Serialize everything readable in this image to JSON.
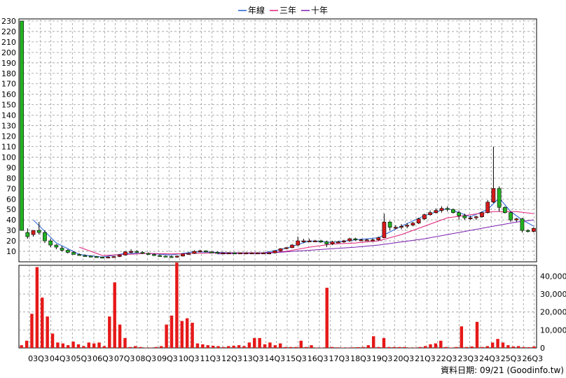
{
  "legend": [
    {
      "label": "年線",
      "color": "#1f5fd6"
    },
    {
      "label": "三年",
      "color": "#e0207a"
    },
    {
      "label": "十年",
      "color": "#7a1fb0"
    }
  ],
  "footer": "資料日期: 09/21 (Goodinfo.tw)",
  "chart_data": {
    "type": "candlestick-with-volume",
    "legend_placement": "top-center",
    "grid": true,
    "x_tick_labels": [
      "03Q3",
      "04Q3",
      "05Q3",
      "06Q3",
      "07Q3",
      "08Q3",
      "09Q3",
      "10Q3",
      "11Q3",
      "12Q3",
      "13Q3",
      "14Q3",
      "15Q3",
      "16Q3",
      "17Q3",
      "18Q3",
      "19Q3",
      "20Q3",
      "21Q3",
      "22Q3",
      "23Q3",
      "24Q3",
      "25Q3",
      "26Q3"
    ],
    "price_axis": {
      "ticks": [
        10,
        20,
        30,
        40,
        50,
        60,
        70,
        80,
        90,
        100,
        110,
        120,
        130,
        140,
        150,
        160,
        170,
        180,
        190,
        200,
        210,
        220,
        230
      ],
      "range": [
        0,
        232
      ]
    },
    "volume_axis": {
      "ticks": [
        0,
        10000,
        20000,
        30000,
        40000
      ],
      "tick_labels": [
        "0",
        "10,000",
        "20,000",
        "30,000",
        "40,000"
      ],
      "range": [
        0,
        46000
      ]
    },
    "candles": {
      "fields": [
        "quarter_index",
        "open",
        "high",
        "low",
        "close"
      ],
      "rows": [
        [
          0,
          230,
          230,
          30,
          30
        ],
        [
          1,
          28,
          32,
          22,
          24
        ],
        [
          2,
          26,
          30,
          24,
          30
        ],
        [
          3,
          30,
          38,
          26,
          28
        ],
        [
          4,
          28,
          30,
          18,
          20
        ],
        [
          5,
          20,
          22,
          14,
          16
        ],
        [
          6,
          16,
          17,
          12,
          14
        ],
        [
          7,
          13,
          15,
          10,
          11
        ],
        [
          8,
          11,
          12,
          8,
          9
        ],
        [
          9,
          9,
          10,
          7,
          7
        ],
        [
          10,
          7,
          8,
          6,
          6
        ],
        [
          11,
          6,
          7,
          5,
          5.5
        ],
        [
          12,
          5.5,
          6,
          4.5,
          5
        ],
        [
          13,
          5,
          5.5,
          4,
          4.5
        ],
        [
          14,
          4.5,
          5,
          4,
          4.2
        ],
        [
          15,
          4.2,
          5,
          3.8,
          4.6
        ],
        [
          16,
          4.6,
          5.5,
          4,
          5
        ],
        [
          17,
          5,
          7,
          4.5,
          6.5
        ],
        [
          18,
          6.5,
          10,
          6,
          9.5
        ],
        [
          19,
          9.5,
          12,
          8,
          10
        ],
        [
          20,
          10,
          11,
          8.5,
          9
        ],
        [
          21,
          9,
          10,
          7.5,
          8
        ],
        [
          22,
          8,
          9,
          6.5,
          7
        ],
        [
          23,
          7,
          8,
          5.5,
          6
        ],
        [
          24,
          6,
          7,
          5,
          5.5
        ],
        [
          25,
          5.5,
          6,
          4.5,
          5
        ],
        [
          26,
          5,
          6,
          4,
          4.5
        ],
        [
          27,
          4.5,
          6,
          3.8,
          5.5
        ],
        [
          28,
          5.5,
          8,
          5,
          7.5
        ],
        [
          29,
          7.5,
          9,
          7,
          8
        ],
        [
          30,
          8,
          11,
          7.5,
          10
        ],
        [
          31,
          10,
          11.5,
          9,
          10.5
        ],
        [
          32,
          10.5,
          11,
          9,
          9.5
        ],
        [
          33,
          9.5,
          10,
          8.5,
          9
        ],
        [
          34,
          9,
          10,
          8,
          8.5
        ],
        [
          35,
          8.5,
          9,
          8,
          8.5
        ],
        [
          36,
          8.5,
          9,
          8,
          8.5
        ],
        [
          37,
          8.5,
          9,
          7.5,
          8
        ],
        [
          38,
          8,
          9,
          7.5,
          8.5
        ],
        [
          39,
          8.5,
          9,
          8,
          8.5
        ],
        [
          40,
          8.5,
          9,
          8,
          8.5
        ],
        [
          41,
          8.5,
          9,
          8,
          8.5
        ],
        [
          42,
          8.5,
          9,
          8,
          8.5
        ],
        [
          43,
          8.5,
          9,
          8,
          8.5
        ],
        [
          44,
          8.5,
          11,
          8,
          10.5
        ],
        [
          45,
          10.5,
          13,
          10,
          12.5
        ],
        [
          46,
          12.5,
          14,
          12,
          13.5
        ],
        [
          47,
          13.5,
          17,
          13,
          16
        ],
        [
          48,
          16,
          24,
          15,
          20
        ],
        [
          49,
          20,
          22,
          18,
          20
        ],
        [
          50,
          20,
          22,
          19,
          20
        ],
        [
          51,
          20,
          21,
          19,
          20
        ],
        [
          52,
          20,
          21,
          18,
          19
        ],
        [
          53,
          19,
          20,
          14,
          17
        ],
        [
          54,
          17,
          20,
          16,
          19
        ],
        [
          55,
          19,
          20,
          18,
          19
        ],
        [
          56,
          19,
          21,
          18,
          20
        ],
        [
          57,
          20,
          23,
          19,
          22
        ],
        [
          58,
          22,
          23,
          20,
          21
        ],
        [
          59,
          21,
          22,
          20,
          21
        ],
        [
          60,
          21,
          22,
          20,
          21
        ],
        [
          61,
          21,
          22,
          20,
          21
        ],
        [
          62,
          21,
          24,
          20,
          23
        ],
        [
          63,
          23,
          46,
          23,
          38
        ],
        [
          64,
          38,
          39,
          30,
          33
        ],
        [
          65,
          33,
          35,
          31,
          33
        ],
        [
          66,
          33,
          36,
          31,
          34
        ],
        [
          67,
          34,
          37,
          32,
          35
        ],
        [
          68,
          35,
          38,
          34,
          37
        ],
        [
          69,
          37,
          42,
          36,
          41
        ],
        [
          70,
          41,
          46,
          40,
          45
        ],
        [
          71,
          45,
          49,
          44,
          47
        ],
        [
          72,
          47,
          51,
          46,
          49
        ],
        [
          73,
          49,
          53,
          47,
          51
        ],
        [
          74,
          51,
          53,
          48,
          50
        ],
        [
          75,
          50,
          51,
          46,
          47
        ],
        [
          76,
          47,
          49,
          40,
          44
        ],
        [
          77,
          44,
          46,
          40,
          42
        ],
        [
          78,
          42,
          44,
          40,
          42
        ],
        [
          79,
          42,
          44,
          40,
          43
        ],
        [
          80,
          43,
          48,
          42,
          47
        ],
        [
          81,
          47,
          59,
          46,
          57
        ],
        [
          82,
          57,
          110,
          56,
          70
        ],
        [
          83,
          70,
          72,
          48,
          52
        ],
        [
          84,
          52,
          53,
          46,
          47
        ],
        [
          85,
          47,
          48,
          38,
          40
        ],
        [
          86,
          40,
          42,
          38,
          41
        ],
        [
          87,
          41,
          42,
          28,
          30
        ],
        [
          88,
          30,
          31,
          28,
          29
        ],
        [
          89,
          29,
          33,
          28,
          32
        ]
      ]
    },
    "series": [
      {
        "name": "年線",
        "x": [
          2,
          6,
          10,
          14,
          18,
          22,
          26,
          30,
          34,
          38,
          42,
          46,
          50,
          54,
          58,
          62,
          66,
          70,
          74,
          78,
          81,
          83,
          85,
          87,
          89
        ],
        "y": [
          40,
          18,
          7,
          4.5,
          8,
          8,
          6.5,
          9.5,
          9,
          8.5,
          8.5,
          13,
          20,
          18.5,
          21,
          23,
          34,
          44,
          51,
          43,
          50,
          61,
          48,
          40,
          34
        ]
      },
      {
        "name": "三年",
        "x": [
          10,
          14,
          18,
          22,
          26,
          30,
          34,
          38,
          42,
          46,
          50,
          54,
          58,
          62,
          66,
          70,
          74,
          78,
          82,
          86,
          89
        ],
        "y": [
          14,
          6,
          7,
          8,
          7.5,
          8,
          8.5,
          8.5,
          8.5,
          10,
          14,
          17,
          18,
          20,
          26,
          34,
          42,
          45,
          48,
          48,
          46
        ]
      },
      {
        "name": "十年",
        "x": [
          34,
          38,
          42,
          46,
          50,
          54,
          58,
          62,
          66,
          70,
          74,
          78,
          82,
          86,
          89
        ],
        "y": [
          7.5,
          8,
          8,
          9.5,
          11,
          12.5,
          14,
          16,
          19,
          22,
          26,
          30,
          34,
          38,
          40
        ]
      }
    ],
    "volume": [
      1500,
      4000,
      19000,
      45000,
      28000,
      17500,
      8000,
      3000,
      2500,
      1500,
      3500,
      2000,
      1000,
      3000,
      2500,
      3000,
      1000,
      17500,
      36500,
      13000,
      5500,
      500,
      1000,
      500,
      200,
      200,
      500,
      1000,
      13000,
      18000,
      47500,
      15000,
      16500,
      14000,
      2500,
      2000,
      1500,
      1200,
      1000,
      500,
      1000,
      1200,
      1500,
      1000,
      3000,
      5500,
      5500,
      2000,
      3000,
      1500,
      2500,
      500,
      500,
      500,
      4000,
      500,
      1500,
      200,
      200,
      33500,
      500,
      300,
      200,
      200,
      300,
      400,
      500,
      1500,
      6500,
      500,
      5500,
      500,
      500,
      500,
      500,
      200,
      200,
      500,
      1000,
      2000,
      2500,
      4000,
      500,
      200,
      500,
      12000,
      500,
      800,
      14500,
      500,
      1000,
      3000,
      5000,
      3000,
      1500,
      800,
      1000,
      500,
      400,
      800
    ]
  }
}
